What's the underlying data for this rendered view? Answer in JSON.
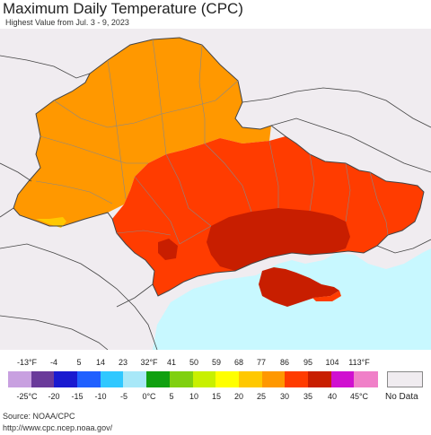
{
  "title": "Maximum Daily Temperature (CPC)",
  "subtitle": "Highest Value from Jul. 3 - 9, 2023",
  "legend": {
    "fahrenheit_labels": [
      "-13°F",
      "-4",
      "5",
      "14",
      "23",
      "32°F",
      "41",
      "50",
      "59",
      "68",
      "77",
      "86",
      "95",
      "104",
      "113°F"
    ],
    "celsius_labels": [
      "-25°C",
      "-20",
      "-15",
      "-10",
      "-5",
      "0°C",
      "5",
      "10",
      "15",
      "20",
      "25",
      "30",
      "35",
      "40",
      "45°C"
    ],
    "colors": [
      "#c8a0e0",
      "#6a3a9a",
      "#1a1ad0",
      "#2060ff",
      "#30c8ff",
      "#a8e8f8",
      "#10a010",
      "#80d010",
      "#c8f000",
      "#ffff00",
      "#ffc800",
      "#ff9800",
      "#ff3c00",
      "#c81e00",
      "#d010d0",
      "#f080c8"
    ],
    "no_data_label": "No Data"
  },
  "map": {
    "colors": {
      "background_land": "#f0ecf0",
      "water": "#c8f8ff",
      "band_25_30": "#ff9800",
      "band_30_35": "#ff3c00",
      "band_35_40": "#c81e00",
      "band_20_25": "#ffc800",
      "border": "#444444",
      "admin_border": "#888888"
    }
  },
  "source": "Source: NOAA/CPC",
  "url": "http://www.cpc.ncep.noaa.gov/"
}
